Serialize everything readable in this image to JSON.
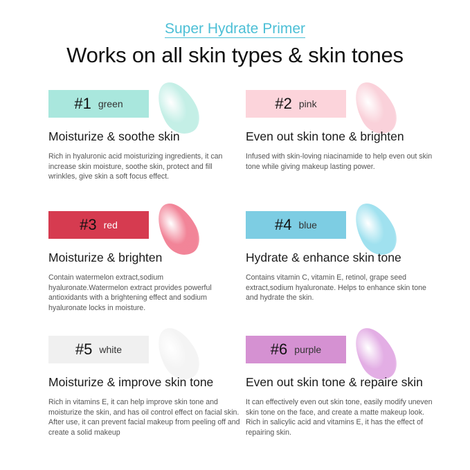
{
  "subtitle": "Super Hydrate Primer",
  "title": "Works on all skin types & skin tones",
  "cards": [
    {
      "num": "#1",
      "color_name": "green",
      "color": "#a9e7dd",
      "num_color": "#111",
      "name_color": "#333",
      "heading": "Moisturize & soothe skin",
      "text": "Rich in hyaluronic acid moisturizing ingredients, it can increase skin moisture, soothe skin, protect and fill wrinkles, give skin a soft focus effect."
    },
    {
      "num": "#2",
      "color_name": "pink",
      "color": "#fcd4db",
      "num_color": "#111",
      "name_color": "#333",
      "heading": "Even out skin tone & brighten",
      "text": "Infused with skin-loving niacinamide to help even out skin tone while giving makeup lasting power."
    },
    {
      "num": "#3",
      "color_name": "red",
      "color": "#d63b50",
      "num_color": "#111",
      "name_color": "#fff",
      "heading": "Moisturize & brighten",
      "text": "Contain watermelon extract,sodium hyaluronate.Watermelon extract provides powerful antioxidants with a brightening effect and sodium hyaluronate locks in moisture."
    },
    {
      "num": "#4",
      "color_name": "blue",
      "color": "#7dcde3",
      "num_color": "#111",
      "name_color": "#333",
      "heading": "Hydrate & enhance skin tone",
      "text": "Contains vitamin C, vitamin E, retinol, grape seed extract,sodium hyaluronate. Helps to enhance skin tone and hydrate the skin."
    },
    {
      "num": "#5",
      "color_name": "white",
      "color": "#f0f0f0",
      "num_color": "#111",
      "name_color": "#333",
      "heading": "Moisturize & improve skin tone",
      "text": "Rich in vitamins E, it can help improve skin tone and moisturize the skin, and has oil control effect on facial skin. After use, it can prevent facial makeup from peeling off and create a solid makeup"
    },
    {
      "num": "#6",
      "color_name": "purple",
      "color": "#d591d2",
      "num_color": "#111",
      "name_color": "#333",
      "heading": "Even out skin tone & repaire skin",
      "text": "It can effectively even out skin tone, easily modify uneven skin tone on the face, and create a matte makeup look. Rich in salicylic acid and vitamins E, it has the effect of repairing skin."
    }
  ],
  "swatches": [
    "#b9ece2",
    "#f9c9d3",
    "#ef6f86",
    "#8fdcec",
    "#f2f2f2",
    "#dea0e0"
  ]
}
